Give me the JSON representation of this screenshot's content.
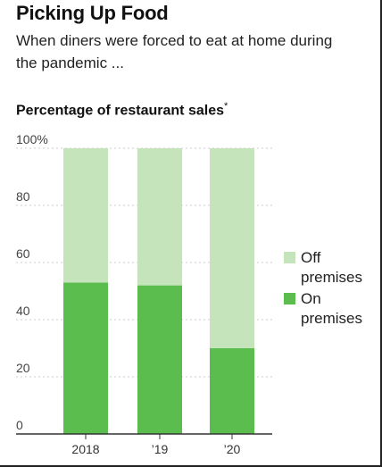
{
  "header": {
    "title": "Picking Up Food",
    "subtitle": "When diners were forced to eat at home during the pandemic ..."
  },
  "chart_data": {
    "type": "bar",
    "stacked": true,
    "title": "Percentage of restaurant sales",
    "title_footnote_mark": "*",
    "categories": [
      "2018",
      "’19",
      "’20"
    ],
    "series": [
      {
        "name": "On premises",
        "values": [
          53,
          52,
          30
        ],
        "color": "#5cbd4f"
      },
      {
        "name": "Off premises",
        "values": [
          47,
          48,
          70
        ],
        "color": "#c5e4bc"
      }
    ],
    "ylim": [
      0,
      100
    ],
    "yticks": [
      0,
      20,
      40,
      60,
      80,
      100
    ],
    "ytick_labels": [
      "0",
      "20",
      "40",
      "60",
      "80",
      "100%"
    ],
    "grid": true,
    "legend_placement": "right",
    "legend_order": [
      "Off premises",
      "On premises"
    ]
  },
  "colors": {
    "on_premises": "#5cbd4f",
    "off_premises": "#c5e4bc",
    "grid": "#cccccc",
    "axis": "#333333"
  }
}
